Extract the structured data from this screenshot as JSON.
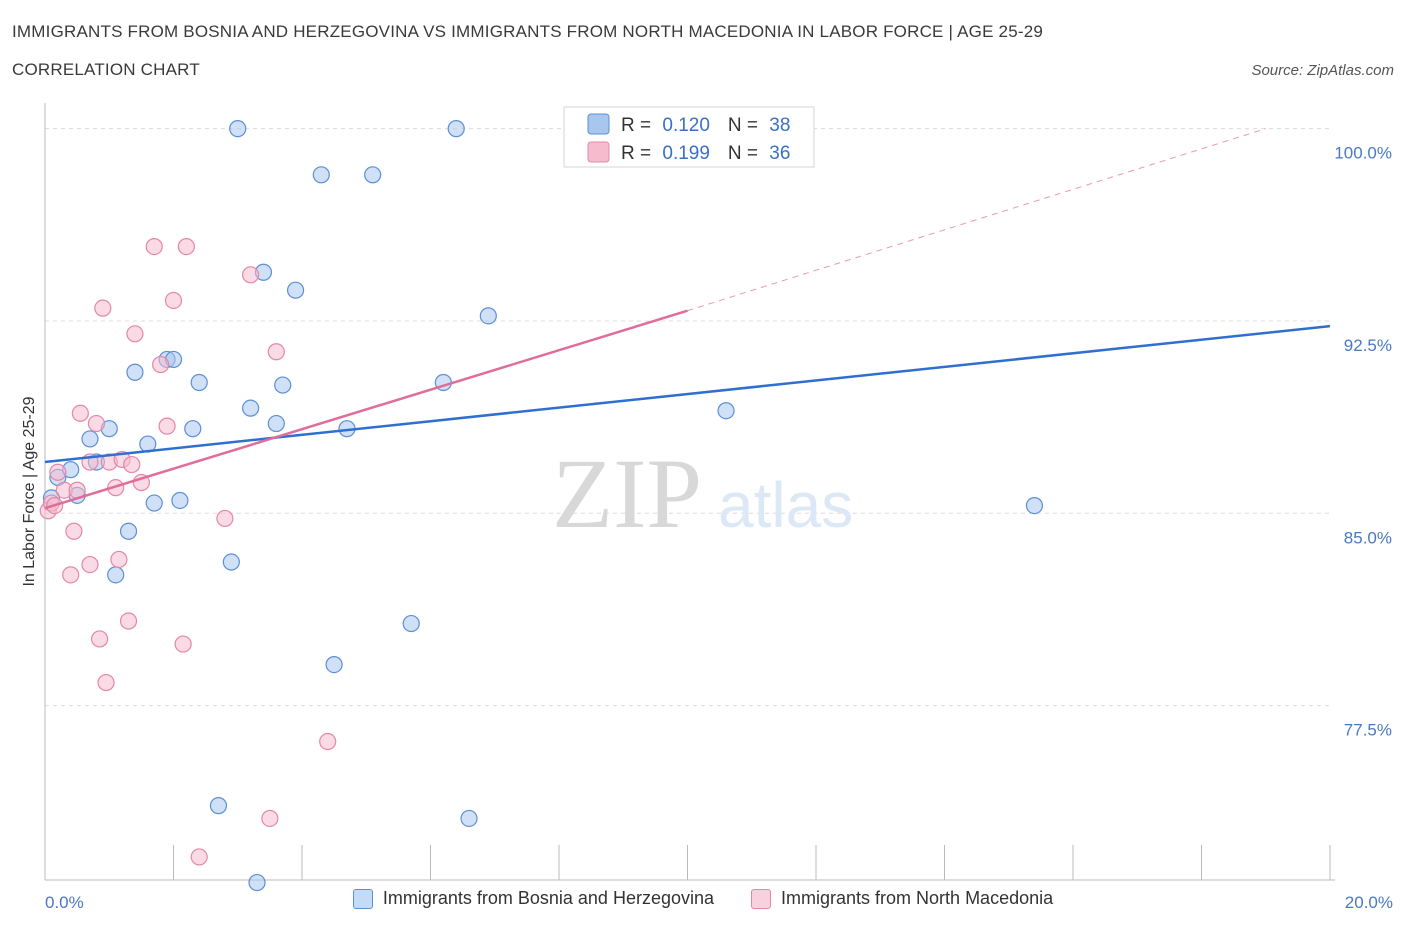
{
  "header": {
    "title": "IMMIGRANTS FROM BOSNIA AND HERZEGOVINA VS IMMIGRANTS FROM NORTH MACEDONIA IN LABOR FORCE | AGE 25-29",
    "subtitle": "CORRELATION CHART",
    "source": "Source: ZipAtlas.com"
  },
  "watermark": {
    "zip": "ZIP",
    "atlas": "atlas"
  },
  "legend_box": [
    {
      "r_label": "R = ",
      "r_value": "0.120",
      "n_label": "N = ",
      "n_value": "38"
    },
    {
      "r_label": "R = ",
      "r_value": "0.199",
      "n_label": "N = ",
      "n_value": "36"
    }
  ],
  "chart_data": {
    "type": "scatter",
    "xlabel": "",
    "ylabel": "In Labor Force | Age 25-29",
    "xlim": [
      0,
      20
    ],
    "ylim": [
      70.7,
      101.0
    ],
    "x_tick_labels": [
      {
        "value": 0,
        "label": "0.0%"
      },
      {
        "value": 20,
        "label": "20.0%"
      }
    ],
    "y_ticks": [
      {
        "value": 100.0,
        "label": "100.0%"
      },
      {
        "value": 92.5,
        "label": "92.5%"
      },
      {
        "value": 85.0,
        "label": "85.0%"
      },
      {
        "value": 77.5,
        "label": "77.5%"
      }
    ],
    "grid": true,
    "legend_position": "bottom",
    "series": [
      {
        "name": "Immigrants from Bosnia and Herzegovina",
        "color": "#a9c7ee",
        "edge": "#5b8fd6",
        "trend_color": "#2f6fd0",
        "trend": {
          "x0": 0,
          "y0": 87.0,
          "x1": 20,
          "y1": 92.3
        },
        "points": [
          [
            0.1,
            85.6
          ],
          [
            0.2,
            86.4
          ],
          [
            0.4,
            86.7
          ],
          [
            0.5,
            85.7
          ],
          [
            0.7,
            87.9
          ],
          [
            0.8,
            87.0
          ],
          [
            1.0,
            88.3
          ],
          [
            1.1,
            82.6
          ],
          [
            1.3,
            84.3
          ],
          [
            1.4,
            90.5
          ],
          [
            1.6,
            87.7
          ],
          [
            1.7,
            85.4
          ],
          [
            1.9,
            91.0
          ],
          [
            2.0,
            91.0
          ],
          [
            2.1,
            85.5
          ],
          [
            2.3,
            88.3
          ],
          [
            2.4,
            90.1
          ],
          [
            2.7,
            73.6
          ],
          [
            2.9,
            83.1
          ],
          [
            3.0,
            100.0
          ],
          [
            3.2,
            89.1
          ],
          [
            3.3,
            70.6
          ],
          [
            3.4,
            94.4
          ],
          [
            3.6,
            88.5
          ],
          [
            3.7,
            90.0
          ],
          [
            3.9,
            93.7
          ],
          [
            4.3,
            98.2
          ],
          [
            4.5,
            79.1
          ],
          [
            4.7,
            88.3
          ],
          [
            5.1,
            98.2
          ],
          [
            5.7,
            80.7
          ],
          [
            6.2,
            90.1
          ],
          [
            6.4,
            100.0
          ],
          [
            6.6,
            73.1
          ],
          [
            6.9,
            92.7
          ],
          [
            8.7,
            100.0
          ],
          [
            10.6,
            89.0
          ],
          [
            15.4,
            85.3
          ]
        ]
      },
      {
        "name": "Immigrants from North Macedonia",
        "color": "#f6bccd",
        "edge": "#e487a6",
        "trend_color": "#e06d99",
        "trend": {
          "x0": 0,
          "y0": 85.2,
          "x1": 10.0,
          "y1": 92.9
        },
        "trend_ext": {
          "x0": 10.0,
          "y0": 92.9,
          "x1": 19.0,
          "y1": 100.0
        },
        "points": [
          [
            0.05,
            85.1
          ],
          [
            0.1,
            85.4
          ],
          [
            0.2,
            86.6
          ],
          [
            0.3,
            85.9
          ],
          [
            0.4,
            82.6
          ],
          [
            0.45,
            84.3
          ],
          [
            0.5,
            85.9
          ],
          [
            0.55,
            88.9
          ],
          [
            0.7,
            87.0
          ],
          [
            0.7,
            83.0
          ],
          [
            0.8,
            88.5
          ],
          [
            0.85,
            80.1
          ],
          [
            0.9,
            93.0
          ],
          [
            0.95,
            78.4
          ],
          [
            1.0,
            87.0
          ],
          [
            1.1,
            86.0
          ],
          [
            1.15,
            83.2
          ],
          [
            1.2,
            87.1
          ],
          [
            1.3,
            80.8
          ],
          [
            1.35,
            86.9
          ],
          [
            1.4,
            92.0
          ],
          [
            1.5,
            86.2
          ],
          [
            1.7,
            95.4
          ],
          [
            1.8,
            90.8
          ],
          [
            1.9,
            88.4
          ],
          [
            2.0,
            93.3
          ],
          [
            2.15,
            79.9
          ],
          [
            2.2,
            95.4
          ],
          [
            2.4,
            71.6
          ],
          [
            2.8,
            84.8
          ],
          [
            3.2,
            94.3
          ],
          [
            3.5,
            73.1
          ],
          [
            3.6,
            91.3
          ],
          [
            4.4,
            76.1
          ],
          [
            8.7,
            100.0
          ],
          [
            0.15,
            85.3
          ]
        ]
      }
    ]
  }
}
